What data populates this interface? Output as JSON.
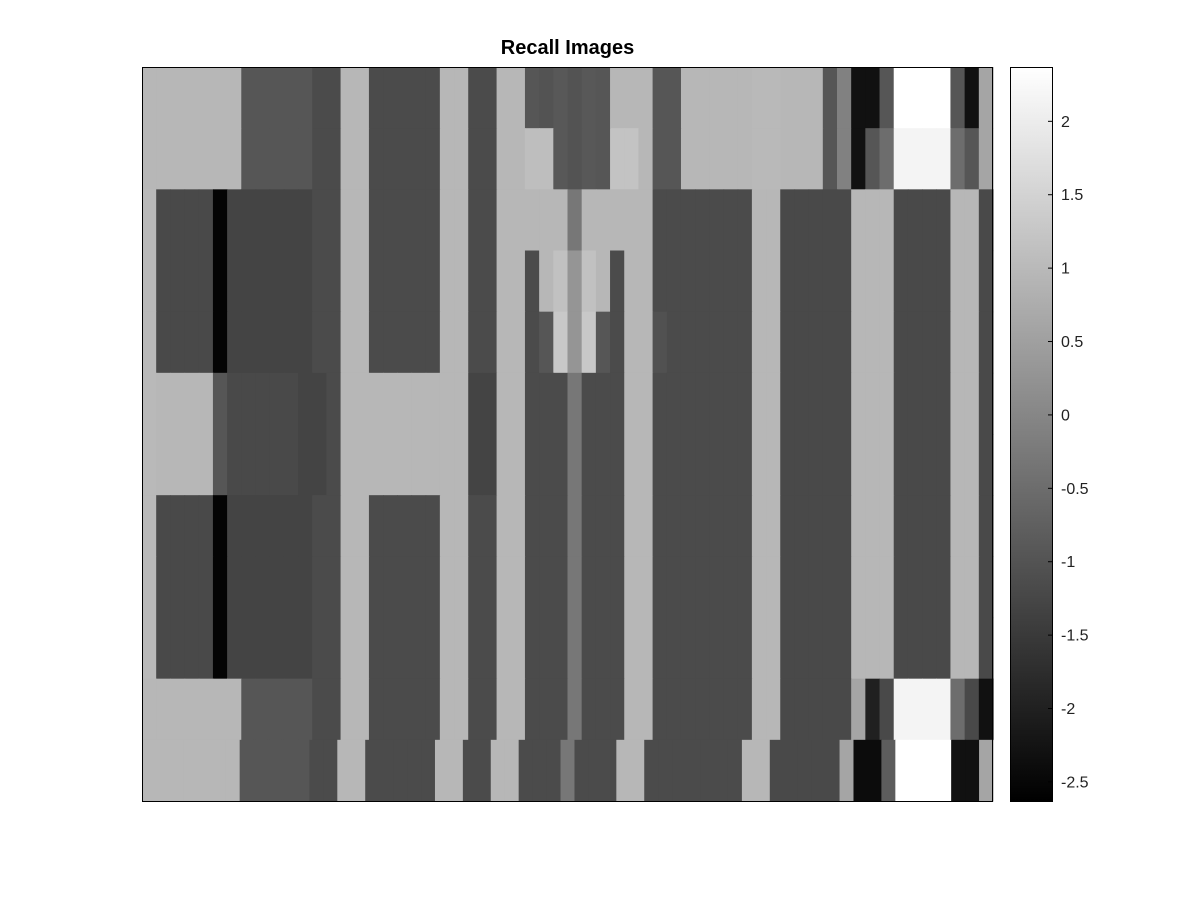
{
  "chart_data": {
    "type": "heatmap",
    "title": "Recall Images",
    "xlabel": "",
    "ylabel": "",
    "colormap": "gray",
    "colors": {
      "low": "#000000",
      "high": "#ffffff",
      "frame": "#000000"
    },
    "clim": [
      -2.63,
      2.37
    ],
    "colorbar": {
      "placement": "right",
      "ticks": [
        2,
        1.5,
        1,
        0.5,
        0,
        -0.5,
        -1,
        -1.5,
        -2,
        -2.5
      ],
      "tick_labels": [
        "2",
        "1.5",
        "1",
        "0.5",
        "0",
        "-0.5",
        "-1",
        "-1.5",
        "-2",
        "-2.5"
      ]
    },
    "n_columns": 60,
    "n_rows": 12,
    "rows": [
      [
        0.95,
        0.95,
        0.95,
        0.95,
        0.95,
        0.95,
        0.95,
        -0.95,
        -0.95,
        -0.95,
        -0.95,
        -0.95,
        -1.15,
        -1.15,
        0.95,
        0.95,
        -1.15,
        -1.15,
        -1.15,
        -1.15,
        -1.15,
        0.95,
        0.95,
        -1.15,
        -1.15,
        0.95,
        0.95,
        -0.95,
        -1.0,
        -0.9,
        -1.0,
        -0.9,
        -0.95,
        0.95,
        0.95,
        0.95,
        -0.95,
        -0.95,
        0.95,
        0.95,
        0.95,
        0.95,
        0.95,
        1.0,
        1.0,
        0.95,
        0.95,
        0.95,
        -0.95,
        -0.1,
        -2.3,
        -2.3,
        -0.95,
        2.37,
        2.37,
        2.37,
        2.37,
        -0.95,
        -2.3,
        0.6
      ],
      [
        0.95,
        0.95,
        0.95,
        0.95,
        0.95,
        0.95,
        0.95,
        -0.95,
        -0.95,
        -0.95,
        -0.95,
        -0.95,
        -1.15,
        -1.15,
        0.95,
        0.95,
        -1.15,
        -1.15,
        -1.15,
        -1.15,
        -1.15,
        0.95,
        0.95,
        -1.15,
        -1.15,
        0.95,
        0.95,
        1.1,
        1.1,
        -0.9,
        -1.0,
        -0.9,
        -0.95,
        1.2,
        1.2,
        0.95,
        -0.95,
        -0.95,
        0.95,
        0.95,
        0.95,
        0.95,
        0.95,
        1.0,
        1.0,
        0.95,
        0.95,
        0.95,
        -0.95,
        -0.1,
        -2.3,
        -0.95,
        -0.5,
        2.15,
        2.15,
        2.15,
        2.15,
        -0.5,
        -0.95,
        0.6
      ],
      [
        1.0,
        -1.2,
        -1.2,
        -1.2,
        -1.2,
        -2.55,
        -1.3,
        -1.3,
        -1.3,
        -1.3,
        -1.3,
        -1.3,
        -1.15,
        -1.15,
        0.95,
        0.95,
        -1.15,
        -1.15,
        -1.15,
        -1.15,
        -1.15,
        0.95,
        0.95,
        -1.15,
        -1.15,
        0.95,
        0.95,
        0.95,
        0.95,
        0.95,
        -0.3,
        0.95,
        0.95,
        0.95,
        0.95,
        0.95,
        -1.15,
        -1.15,
        -1.15,
        -1.15,
        -1.15,
        -1.15,
        -1.15,
        0.95,
        0.95,
        -1.2,
        -1.2,
        -1.2,
        -1.2,
        -1.2,
        0.95,
        0.95,
        0.95,
        -1.2,
        -1.2,
        -1.2,
        -1.2,
        0.95,
        0.95,
        -1.2
      ],
      [
        1.0,
        -1.2,
        -1.2,
        -1.2,
        -1.2,
        -2.55,
        -1.3,
        -1.3,
        -1.3,
        -1.3,
        -1.3,
        -1.3,
        -1.15,
        -1.15,
        0.95,
        0.95,
        -1.15,
        -1.15,
        -1.15,
        -1.15,
        -1.15,
        0.95,
        0.95,
        -1.15,
        -1.15,
        0.95,
        0.95,
        -1.15,
        0.95,
        1.15,
        0.3,
        1.15,
        0.95,
        -1.15,
        0.95,
        0.95,
        -1.15,
        -1.15,
        -1.15,
        -1.15,
        -1.15,
        -1.15,
        -1.15,
        0.95,
        0.95,
        -1.2,
        -1.2,
        -1.2,
        -1.2,
        -1.2,
        0.95,
        0.95,
        0.95,
        -1.2,
        -1.2,
        -1.2,
        -1.2,
        0.95,
        0.95,
        -1.2
      ],
      [
        1.0,
        -1.2,
        -1.2,
        -1.2,
        -1.2,
        -2.55,
        -1.3,
        -1.3,
        -1.3,
        -1.3,
        -1.3,
        -1.3,
        -1.15,
        -1.15,
        0.95,
        0.95,
        -1.15,
        -1.15,
        -1.15,
        -1.15,
        -1.15,
        0.95,
        0.95,
        -1.15,
        -1.15,
        0.95,
        0.95,
        -1.15,
        -0.95,
        1.3,
        0.3,
        1.3,
        -0.95,
        -1.15,
        0.95,
        0.95,
        -1.05,
        -1.15,
        -1.15,
        -1.15,
        -1.15,
        -1.15,
        -1.15,
        0.95,
        0.95,
        -1.2,
        -1.2,
        -1.2,
        -1.2,
        -1.2,
        0.95,
        0.95,
        0.95,
        -1.2,
        -1.2,
        -1.2,
        -1.2,
        0.95,
        0.95,
        -1.2
      ],
      [
        1.0,
        0.95,
        0.95,
        0.95,
        0.95,
        -0.95,
        -1.2,
        -1.2,
        -1.2,
        -1.2,
        -1.2,
        -1.3,
        -1.3,
        -1.15,
        0.95,
        0.95,
        0.95,
        0.95,
        0.95,
        0.95,
        0.95,
        0.95,
        0.95,
        -1.3,
        -1.3,
        0.95,
        0.95,
        -1.15,
        -1.15,
        -1.15,
        -0.3,
        -1.15,
        -1.15,
        -1.15,
        0.95,
        0.95,
        -1.15,
        -1.15,
        -1.15,
        -1.15,
        -1.15,
        -1.15,
        -1.15,
        0.95,
        0.95,
        -1.2,
        -1.2,
        -1.2,
        -1.2,
        -1.2,
        0.95,
        0.95,
        0.95,
        -1.2,
        -1.2,
        -1.2,
        -1.2,
        0.95,
        0.95,
        -1.2
      ],
      [
        1.0,
        0.95,
        0.95,
        0.95,
        0.95,
        -0.95,
        -1.2,
        -1.2,
        -1.2,
        -1.2,
        -1.2,
        -1.3,
        -1.3,
        -1.15,
        0.95,
        0.95,
        0.95,
        0.95,
        0.95,
        0.95,
        0.95,
        0.95,
        0.95,
        -1.3,
        -1.3,
        0.95,
        0.95,
        -1.15,
        -1.15,
        -1.15,
        -0.3,
        -1.15,
        -1.15,
        -1.15,
        0.95,
        0.95,
        -1.15,
        -1.15,
        -1.15,
        -1.15,
        -1.15,
        -1.15,
        -1.15,
        0.95,
        0.95,
        -1.2,
        -1.2,
        -1.2,
        -1.2,
        -1.2,
        0.95,
        0.95,
        0.95,
        -1.2,
        -1.2,
        -1.2,
        -1.2,
        0.95,
        0.95,
        -1.2
      ],
      [
        1.0,
        -1.2,
        -1.2,
        -1.2,
        -1.2,
        -2.55,
        -1.3,
        -1.3,
        -1.3,
        -1.3,
        -1.3,
        -1.3,
        -1.15,
        -1.15,
        0.95,
        0.95,
        -1.15,
        -1.15,
        -1.15,
        -1.15,
        -1.15,
        0.95,
        0.95,
        -1.15,
        -1.15,
        0.95,
        0.95,
        -1.15,
        -1.15,
        -1.15,
        -0.3,
        -1.15,
        -1.15,
        -1.15,
        0.95,
        0.95,
        -1.15,
        -1.15,
        -1.15,
        -1.15,
        -1.15,
        -1.15,
        -1.15,
        0.95,
        0.95,
        -1.2,
        -1.2,
        -1.2,
        -1.2,
        -1.2,
        0.95,
        0.95,
        0.95,
        -1.2,
        -1.2,
        -1.2,
        -1.2,
        0.95,
        0.95,
        -1.2
      ],
      [
        1.0,
        -1.2,
        -1.2,
        -1.2,
        -1.2,
        -2.55,
        -1.3,
        -1.3,
        -1.3,
        -1.3,
        -1.3,
        -1.3,
        -1.15,
        -1.15,
        0.95,
        0.95,
        -1.15,
        -1.15,
        -1.15,
        -1.15,
        -1.15,
        0.95,
        0.95,
        -1.15,
        -1.15,
        0.95,
        0.95,
        -1.15,
        -1.15,
        -1.15,
        -0.3,
        -1.15,
        -1.15,
        -1.15,
        0.95,
        0.95,
        -1.15,
        -1.15,
        -1.15,
        -1.15,
        -1.15,
        -1.15,
        -1.15,
        0.95,
        0.95,
        -1.2,
        -1.2,
        -1.2,
        -1.2,
        -1.2,
        0.95,
        0.95,
        0.95,
        -1.2,
        -1.2,
        -1.2,
        -1.2,
        0.95,
        0.95,
        -1.2
      ],
      [
        1.0,
        -1.2,
        -1.2,
        -1.2,
        -1.2,
        -2.55,
        -1.3,
        -1.3,
        -1.3,
        -1.3,
        -1.3,
        -1.3,
        -1.15,
        -1.15,
        0.95,
        0.95,
        -1.15,
        -1.15,
        -1.15,
        -1.15,
        -1.15,
        0.95,
        0.95,
        -1.15,
        -1.15,
        0.95,
        0.95,
        -1.15,
        -1.15,
        -1.15,
        -0.3,
        -1.15,
        -1.15,
        -1.15,
        0.95,
        0.95,
        -1.15,
        -1.15,
        -1.15,
        -1.15,
        -1.15,
        -1.15,
        -1.15,
        0.95,
        0.95,
        -1.2,
        -1.2,
        -1.2,
        -1.2,
        -1.2,
        0.95,
        0.95,
        0.95,
        -1.2,
        -1.2,
        -1.2,
        -1.2,
        0.95,
        0.95,
        -1.2
      ],
      [
        0.95,
        0.95,
        0.95,
        0.95,
        0.95,
        0.95,
        0.95,
        -0.95,
        -0.95,
        -0.95,
        -0.95,
        -0.95,
        -1.15,
        -1.15,
        0.95,
        0.95,
        -1.15,
        -1.15,
        -1.15,
        -1.15,
        -1.15,
        0.95,
        0.95,
        -1.15,
        -1.15,
        0.95,
        0.95,
        -1.15,
        -1.15,
        -1.15,
        -0.3,
        -1.15,
        -1.15,
        -1.15,
        0.95,
        0.95,
        -1.15,
        -1.15,
        -1.15,
        -1.15,
        -1.15,
        -1.15,
        -1.15,
        0.95,
        0.95,
        -1.2,
        -1.2,
        -1.2,
        -1.2,
        -1.2,
        0.6,
        -2.0,
        -1.2,
        2.15,
        2.15,
        2.15,
        2.15,
        -0.5,
        -1.2,
        -2.3
      ],
      [
        0.95,
        0.95,
        0.95,
        0.95,
        0.95,
        0.95,
        0.95,
        -0.95,
        -0.95,
        -0.95,
        -0.95,
        -0.95,
        -1.15,
        -1.15,
        0.95,
        0.95,
        -1.15,
        -1.15,
        -1.15,
        -1.15,
        -1.15,
        0.95,
        0.95,
        -1.15,
        -1.15,
        0.95,
        0.95,
        -1.15,
        -1.15,
        -1.15,
        -0.3,
        -1.15,
        -1.15,
        -1.15,
        0.95,
        0.95,
        -1.15,
        -1.15,
        -1.15,
        -1.15,
        -1.15,
        -1.15,
        -1.15,
        0.95,
        0.95,
        -1.2,
        -1.2,
        -1.2,
        -1.2,
        -1.2,
        0.6,
        -2.4,
        -2.4,
        -0.8,
        2.37,
        2.37,
        2.37,
        2.37,
        -2.3,
        -2.3,
        0.6
      ]
    ]
  }
}
